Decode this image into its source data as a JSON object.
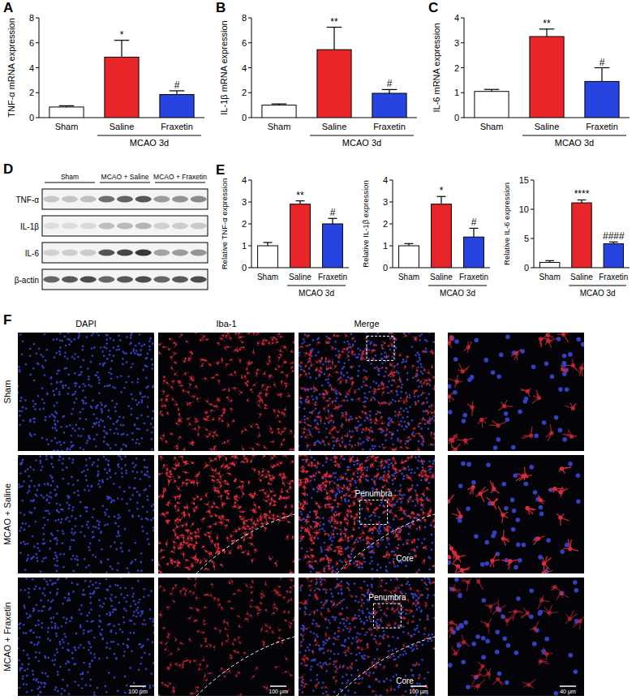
{
  "chart_data": [
    {
      "panel": "A",
      "type": "bar",
      "y_label": "TNF-α mRNA expression",
      "categories": [
        "Sham",
        "Saline",
        "Fraxetin"
      ],
      "group_label": "MCAO 3d",
      "values": [
        0.85,
        4.85,
        1.85
      ],
      "errors": [
        0.1,
        1.35,
        0.3
      ],
      "colors": [
        "#ffffff",
        "#e8262a",
        "#2743e0"
      ],
      "significance": [
        null,
        "*",
        "#"
      ],
      "ylim": [
        0,
        8
      ],
      "yticks": [
        0,
        2,
        4,
        6,
        8
      ]
    },
    {
      "panel": "B",
      "type": "bar",
      "y_label": "IL-1β mRNA expression",
      "categories": [
        "Sham",
        "Saline",
        "Fraxetin"
      ],
      "group_label": "MCAO 3d",
      "values": [
        1.0,
        5.45,
        1.95
      ],
      "errors": [
        0.1,
        1.8,
        0.3
      ],
      "colors": [
        "#ffffff",
        "#e8262a",
        "#2743e0"
      ],
      "significance": [
        null,
        "**",
        "#"
      ],
      "ylim": [
        0,
        8
      ],
      "yticks": [
        0,
        2,
        4,
        6,
        8
      ]
    },
    {
      "panel": "C",
      "type": "bar",
      "y_label": "IL-6 mRNA expression",
      "categories": [
        "Sham",
        "Saline",
        "Fraxetin"
      ],
      "group_label": "MCAO 3d",
      "values": [
        1.05,
        3.25,
        1.45
      ],
      "errors": [
        0.08,
        0.3,
        0.55
      ],
      "colors": [
        "#ffffff",
        "#e8262a",
        "#2743e0"
      ],
      "significance": [
        null,
        "**",
        "#"
      ],
      "ylim": [
        0,
        4
      ],
      "yticks": [
        0,
        1,
        2,
        3,
        4
      ]
    },
    {
      "panel": "E",
      "type": "bar",
      "y_label": "Relative TNF-α expression",
      "categories": [
        "Sham",
        "Saline",
        "Fraxetin"
      ],
      "group_label": "MCAO 3d",
      "values": [
        1.0,
        2.9,
        2.0
      ],
      "errors": [
        0.15,
        0.15,
        0.25
      ],
      "colors": [
        "#ffffff",
        "#e8262a",
        "#2743e0"
      ],
      "significance": [
        null,
        "**",
        "#"
      ],
      "ylim": [
        0,
        4
      ],
      "yticks": [
        0,
        1,
        2,
        3,
        4
      ]
    },
    {
      "type": "bar",
      "y_label": "Relative IL-1β expression",
      "categories": [
        "Sham",
        "Saline",
        "Fraxetin"
      ],
      "group_label": "MCAO 3d",
      "values": [
        1.0,
        2.9,
        1.4
      ],
      "errors": [
        0.1,
        0.35,
        0.4
      ],
      "colors": [
        "#ffffff",
        "#e8262a",
        "#2743e0"
      ],
      "significance": [
        null,
        "*",
        "#"
      ],
      "ylim": [
        0,
        4
      ],
      "yticks": [
        0,
        1,
        2,
        3,
        4
      ]
    },
    {
      "type": "bar",
      "y_label": "Relative IL-6 expression",
      "categories": [
        "Sham",
        "Saline",
        "Fraxetin"
      ],
      "group_label": "MCAO 3d",
      "values": [
        0.9,
        11.1,
        4.1
      ],
      "errors": [
        0.3,
        0.5,
        0.3
      ],
      "colors": [
        "#ffffff",
        "#e8262a",
        "#2743e0"
      ],
      "significance": [
        null,
        "****",
        "####"
      ],
      "ylim": [
        0,
        15
      ],
      "yticks": [
        0,
        5,
        10,
        15
      ]
    }
  ],
  "blot": {
    "panel": "D",
    "lanes": [
      "Sham",
      "MCAO + Saline",
      "MCAO + Fraxetin"
    ],
    "rows": [
      "TNF-α",
      "IL-1β",
      "IL-6",
      "β-actin"
    ]
  },
  "micrographs": {
    "panel": "F",
    "columns": [
      "DAPI",
      "Iba-1",
      "Merge"
    ],
    "rows": [
      "Sham",
      "MCAO + Saline",
      "MCAO + Fraxetin"
    ],
    "region_labels": [
      "Penumbra",
      "Core"
    ],
    "scale_bars": [
      "100 μm",
      "40 μm"
    ]
  }
}
